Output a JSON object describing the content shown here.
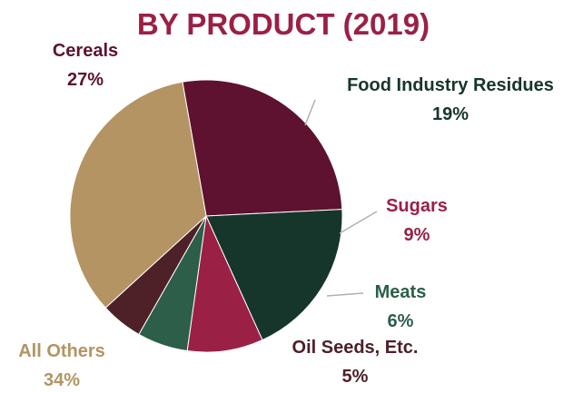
{
  "chart_data": {
    "type": "pie",
    "title": "BY PRODUCT (2019)",
    "title_color": "#9b2045",
    "slices": [
      {
        "label": "Cereals",
        "value": 27,
        "display": "27%",
        "color": "#5e1230",
        "label_color": "#5e1230"
      },
      {
        "label": "Food Industry Residues",
        "value": 19,
        "display": "19%",
        "color": "#16352b",
        "label_color": "#16352b"
      },
      {
        "label": "Sugars",
        "value": 9,
        "display": "9%",
        "color": "#9b2045",
        "label_color": "#9b2045"
      },
      {
        "label": "Meats",
        "value": 6,
        "display": "6%",
        "color": "#2c5e4a",
        "label_color": "#2c5e4a"
      },
      {
        "label": "Oil Seeds, Etc.",
        "value": 5,
        "display": "5%",
        "color": "#4e2028",
        "label_color": "#4e2028"
      },
      {
        "label": "All Others",
        "value": 34,
        "display": "34%",
        "color": "#b39462",
        "label_color": "#b39462"
      }
    ],
    "legend": "none",
    "leader_line_color": "#b0b0b0"
  }
}
